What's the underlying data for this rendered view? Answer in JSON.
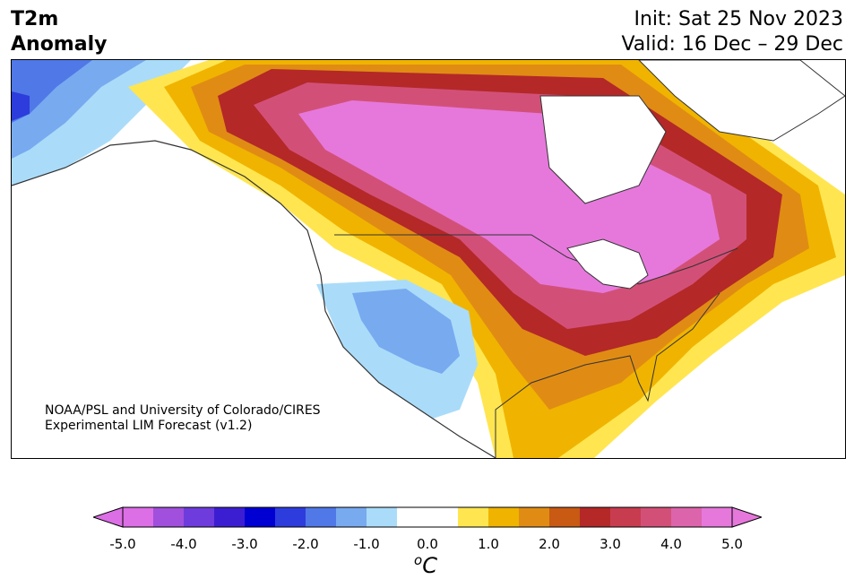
{
  "title": {
    "line1": "T2m",
    "line2": "Anomaly"
  },
  "dates": {
    "init": "Init: Sat 25 Nov 2023",
    "valid": "Valid: 16 Dec – 29 Dec"
  },
  "credit": {
    "line1": "NOAA/PSL and University of Colorado/CIRES",
    "line2": "Experimental LIM Forecast (v1.2)"
  },
  "colorbar": {
    "unit_base": "C",
    "unit_sup": "o",
    "tick_labels": [
      "-5.0",
      "-4.0",
      "-3.0",
      "-2.0",
      "-1.0",
      "0.0",
      "1.0",
      "2.0",
      "3.0",
      "4.0",
      "5.0"
    ],
    "colors": [
      "#dc6ee6",
      "#a050dc",
      "#6e3cdc",
      "#3c1ed2",
      "#0000d2",
      "#2d3cdc",
      "#5078e6",
      "#78aaf0",
      "#aadcfa",
      "#ffffff",
      "#ffffff",
      "#ffe650",
      "#f0b400",
      "#e08c14",
      "#c85a14",
      "#b42828",
      "#c83c50",
      "#d25078",
      "#dc64aa",
      "#e678dc"
    ]
  }
}
